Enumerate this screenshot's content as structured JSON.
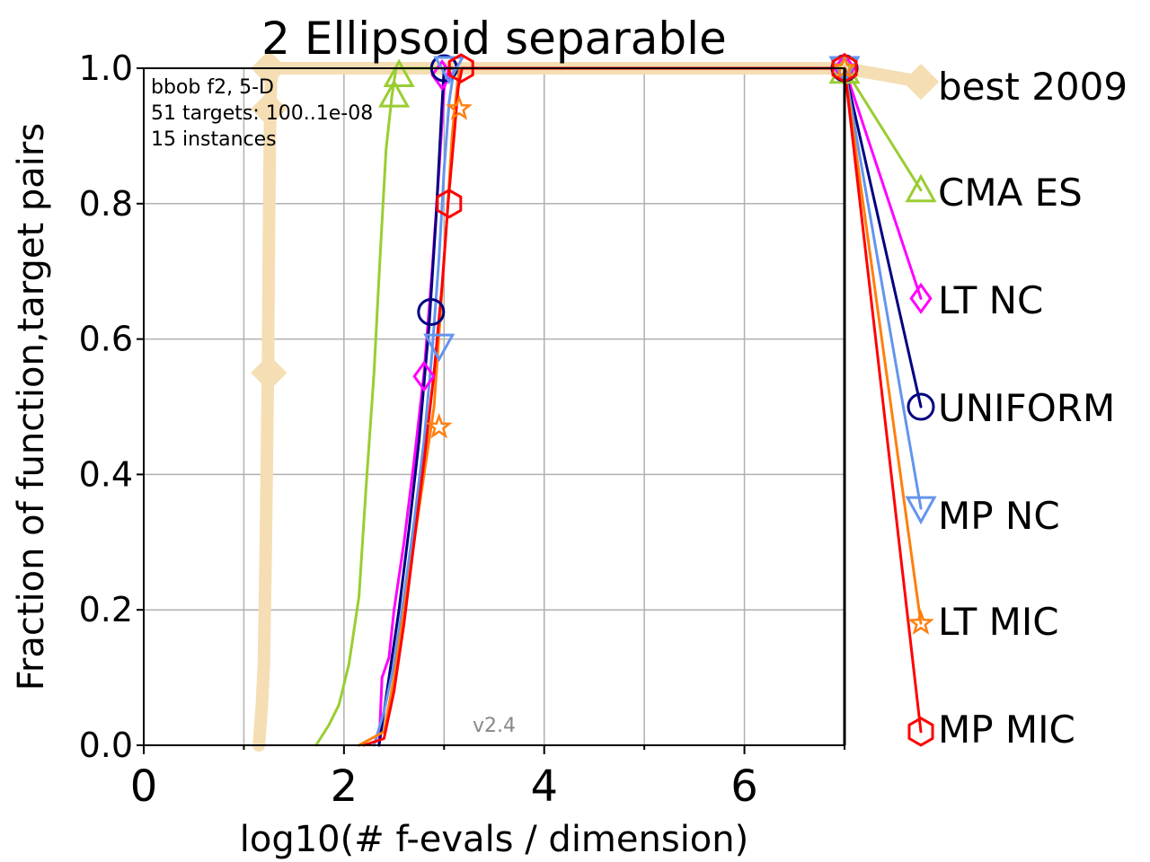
{
  "chart_data": {
    "type": "line",
    "title": "2 Ellipsoid separable",
    "xlabel": "log10(# f-evals / dimension)",
    "ylabel": "Fraction of function,target pairs",
    "xlim": [
      0,
      7
    ],
    "ylim": [
      0,
      1
    ],
    "xticks": [
      "0",
      "2",
      "4",
      "6"
    ],
    "yticks": [
      "0.0",
      "0.2",
      "0.4",
      "0.6",
      "0.8",
      "1.0"
    ],
    "grid": true,
    "legend": "right",
    "annotation": [
      "bbob f2, 5-D",
      "51 targets: 100..1e-08",
      "15 instances"
    ],
    "version": "v2.4",
    "series": [
      {
        "name": "best 2009",
        "color": "#f5deb3",
        "marker": "diamond",
        "end_value": 0.98,
        "points": [
          [
            1.15,
            0.0
          ],
          [
            1.18,
            0.06
          ],
          [
            1.2,
            0.12
          ],
          [
            1.22,
            0.3
          ],
          [
            1.24,
            0.55
          ],
          [
            1.25,
            0.75
          ],
          [
            1.26,
            0.9
          ],
          [
            1.27,
            0.98
          ],
          [
            1.3,
            1.0
          ],
          [
            7.0,
            1.0
          ]
        ],
        "markers": [
          [
            1.25,
            0.55
          ],
          [
            1.25,
            0.94
          ],
          [
            1.25,
            1.0
          ]
        ]
      },
      {
        "name": "CMA ES",
        "color": "#9acd32",
        "marker": "triangle-up",
        "end_value": 0.82,
        "points": [
          [
            1.72,
            0.0
          ],
          [
            1.85,
            0.03
          ],
          [
            1.95,
            0.06
          ],
          [
            2.05,
            0.12
          ],
          [
            2.15,
            0.22
          ],
          [
            2.22,
            0.38
          ],
          [
            2.3,
            0.55
          ],
          [
            2.36,
            0.72
          ],
          [
            2.42,
            0.88
          ],
          [
            2.48,
            0.96
          ],
          [
            2.52,
            1.0
          ],
          [
            7.0,
            1.0
          ]
        ],
        "markers": [
          [
            2.5,
            0.96
          ],
          [
            2.55,
            0.99
          ],
          [
            7.0,
            0.995
          ]
        ]
      },
      {
        "name": "LT NC",
        "color": "#ff00ff",
        "marker": "diamond",
        "end_value": 0.66,
        "points": [
          [
            2.35,
            0.0
          ],
          [
            2.38,
            0.1
          ],
          [
            2.45,
            0.13
          ],
          [
            2.5,
            0.2
          ],
          [
            2.6,
            0.3
          ],
          [
            2.7,
            0.42
          ],
          [
            2.8,
            0.55
          ],
          [
            2.88,
            0.7
          ],
          [
            2.95,
            0.85
          ],
          [
            3.0,
            0.97
          ],
          [
            3.05,
            1.0
          ],
          [
            7.0,
            1.0
          ]
        ],
        "markers": [
          [
            2.8,
            0.545
          ],
          [
            2.98,
            0.99
          ],
          [
            7.0,
            1.0
          ]
        ]
      },
      {
        "name": "UNIFORM",
        "color": "#000080",
        "marker": "circle",
        "end_value": 0.5,
        "points": [
          [
            2.35,
            0.0
          ],
          [
            2.45,
            0.1
          ],
          [
            2.55,
            0.2
          ],
          [
            2.65,
            0.32
          ],
          [
            2.75,
            0.45
          ],
          [
            2.85,
            0.62
          ],
          [
            2.92,
            0.78
          ],
          [
            2.97,
            0.92
          ],
          [
            3.0,
            1.0
          ],
          [
            7.0,
            1.0
          ]
        ],
        "markers": [
          [
            2.87,
            0.64
          ],
          [
            3.0,
            1.0
          ],
          [
            7.0,
            1.0
          ]
        ]
      },
      {
        "name": "MP NC",
        "color": "#6495ed",
        "marker": "triangle-down",
        "end_value": 0.35,
        "points": [
          [
            2.3,
            0.0
          ],
          [
            2.4,
            0.05
          ],
          [
            2.5,
            0.12
          ],
          [
            2.6,
            0.22
          ],
          [
            2.7,
            0.33
          ],
          [
            2.8,
            0.45
          ],
          [
            2.88,
            0.58
          ],
          [
            2.95,
            0.72
          ],
          [
            3.0,
            0.85
          ],
          [
            3.05,
            0.95
          ],
          [
            3.1,
            1.0
          ],
          [
            7.0,
            1.0
          ]
        ],
        "markers": [
          [
            2.95,
            0.59
          ],
          [
            3.05,
            1.0
          ],
          [
            7.0,
            1.0
          ]
        ]
      },
      {
        "name": "LT MIC",
        "color": "#ff7f0e",
        "marker": "star",
        "end_value": 0.18,
        "points": [
          [
            2.15,
            0.0
          ],
          [
            2.4,
            0.02
          ],
          [
            2.5,
            0.1
          ],
          [
            2.6,
            0.2
          ],
          [
            2.7,
            0.3
          ],
          [
            2.8,
            0.4
          ],
          [
            2.9,
            0.5
          ],
          [
            2.97,
            0.65
          ],
          [
            3.03,
            0.78
          ],
          [
            3.08,
            0.9
          ],
          [
            3.12,
            0.96
          ],
          [
            3.15,
            1.0
          ],
          [
            7.0,
            1.0
          ]
        ],
        "markers": [
          [
            2.95,
            0.47
          ],
          [
            3.15,
            0.94
          ],
          [
            7.0,
            1.0
          ]
        ]
      },
      {
        "name": "MP MIC",
        "color": "#ff0000",
        "marker": "hexagon",
        "end_value": 0.02,
        "points": [
          [
            2.2,
            0.0
          ],
          [
            2.4,
            0.01
          ],
          [
            2.5,
            0.08
          ],
          [
            2.6,
            0.18
          ],
          [
            2.7,
            0.3
          ],
          [
            2.8,
            0.42
          ],
          [
            2.9,
            0.55
          ],
          [
            2.98,
            0.68
          ],
          [
            3.04,
            0.8
          ],
          [
            3.1,
            0.9
          ],
          [
            3.14,
            0.97
          ],
          [
            3.18,
            1.0
          ],
          [
            7.0,
            1.0
          ]
        ],
        "markers": [
          [
            3.05,
            0.8
          ],
          [
            3.17,
            1.0
          ],
          [
            7.0,
            1.0
          ]
        ]
      }
    ]
  }
}
